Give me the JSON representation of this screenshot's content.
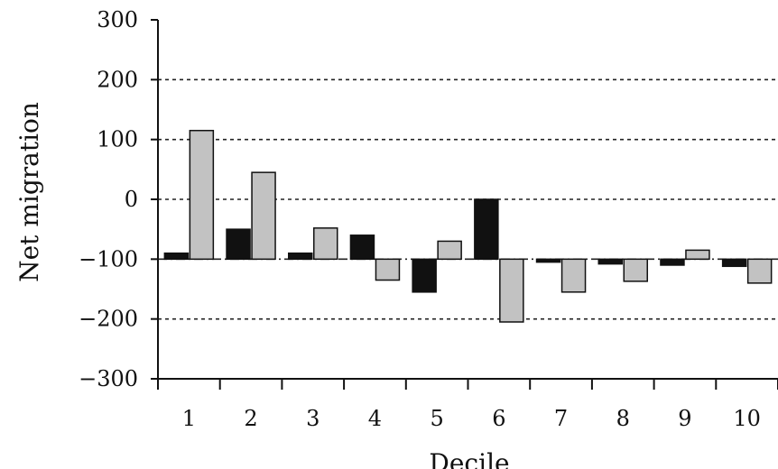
{
  "chart_data": {
    "type": "bar",
    "xlabel": "Decile",
    "ylabel": "Net migration",
    "categories": [
      "1",
      "2",
      "3",
      "4",
      "5",
      "6",
      "7",
      "8",
      "9",
      "10"
    ],
    "baseline": -100,
    "ylim": [
      -300,
      300
    ],
    "yticks": [
      300,
      200,
      100,
      0,
      -100,
      -200,
      -300
    ],
    "ytick_labels": [
      "300",
      "200",
      "100",
      "0",
      "−100",
      "−200",
      "−300"
    ],
    "grid": "dashed horizontal at 200, 100, 0, -200; dash-dot at -100",
    "series": [
      {
        "color": "#111111",
        "values": [
          -90,
          -50,
          -90,
          -60,
          -155,
          0,
          -105,
          -108,
          -110,
          -112
        ]
      },
      {
        "color": "#c2c2c2",
        "values": [
          115,
          45,
          -48,
          -135,
          -70,
          -205,
          -155,
          -137,
          -85,
          -140
        ]
      }
    ]
  }
}
